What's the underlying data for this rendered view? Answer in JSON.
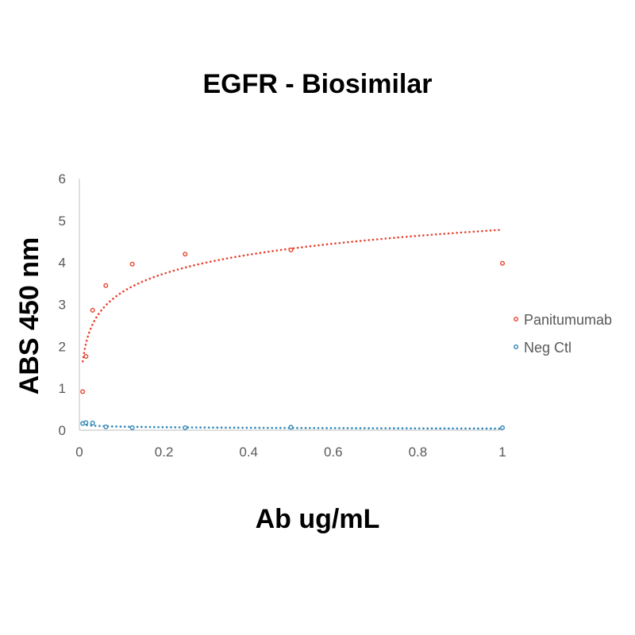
{
  "chart_data": {
    "type": "scatter",
    "title": "EGFR - Biosimilar",
    "xlabel": "Ab ug/mL",
    "ylabel": "ABS 450 nm",
    "xlim": [
      0,
      1
    ],
    "ylim": [
      0,
      6
    ],
    "x_ticks": [
      "0",
      "0.2",
      "0.4",
      "0.6",
      "0.8",
      "1"
    ],
    "y_ticks": [
      "0",
      "1",
      "2",
      "3",
      "4",
      "5",
      "6"
    ],
    "grid": false,
    "legend_position": "right",
    "series": [
      {
        "name": "Panitumumab",
        "color": "#e8412c",
        "marker": "open-circle",
        "x": [
          0.0078,
          0.0156,
          0.03125,
          0.0625,
          0.125,
          0.25,
          0.5,
          1.0
        ],
        "y": [
          0.92,
          1.76,
          2.86,
          3.45,
          3.96,
          4.2,
          4.3,
          3.98
        ],
        "trendline": {
          "type": "logarithmic",
          "style": "dotted",
          "a": 4.78,
          "b": 0.65,
          "x_from": 0.008,
          "x_to": 1.0
        }
      },
      {
        "name": "Neg Ctl",
        "color": "#2e86b8",
        "marker": "open-circle",
        "x": [
          0.0078,
          0.0156,
          0.03125,
          0.0625,
          0.125,
          0.25,
          0.5,
          1.0
        ],
        "y": [
          0.16,
          0.18,
          0.17,
          0.08,
          0.06,
          0.06,
          0.07,
          0.06
        ],
        "trendline": {
          "type": "logarithmic",
          "style": "dotted",
          "a": 0.04,
          "b": -0.02,
          "x_from": 0.008,
          "x_to": 1.0
        }
      }
    ]
  }
}
